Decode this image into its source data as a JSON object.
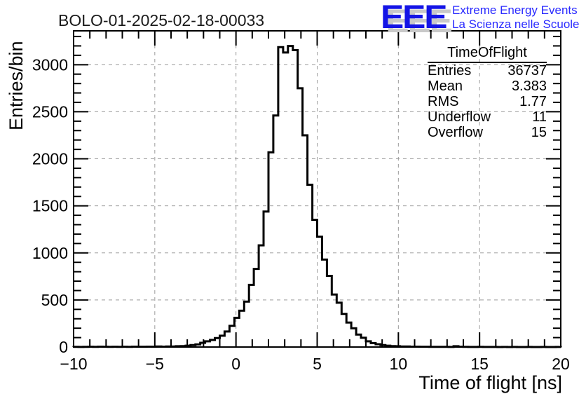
{
  "page": {
    "title": "BOLO-01-2025-02-18-00033"
  },
  "logo": {
    "acronym": "EEE",
    "line1": "Extreme Energy Events",
    "line2": "La Scienza nelle Scuole",
    "blue": "#1414e6",
    "shadow_gray": "#c9c9c9"
  },
  "stats": {
    "title": "TimeOfFlight",
    "rows": [
      {
        "label": "Entries",
        "value": "36737"
      },
      {
        "label": "Mean",
        "value": "3.383"
      },
      {
        "label": "RMS",
        "value": "1.77"
      },
      {
        "label": "Underflow",
        "value": "11"
      },
      {
        "label": "Overflow",
        "value": "15"
      }
    ]
  },
  "colors": {
    "histogram_line": "#000000",
    "grid": "#9a9a9a",
    "frame": "#000000",
    "background": "#ffffff"
  },
  "chart_data": {
    "type": "bar",
    "subtype": "step-histogram",
    "title": "BOLO-01-2025-02-18-00033",
    "xlabel": "Time of flight [ns]",
    "ylabel": "Entries/bin",
    "xlim": [
      -10,
      20
    ],
    "ylim": [
      0,
      3360
    ],
    "x_ticks_major": [
      -10,
      -5,
      0,
      5,
      10,
      15,
      20
    ],
    "x_minor_step": 1,
    "y_ticks_major": [
      0,
      500,
      1000,
      1500,
      2000,
      2500,
      3000
    ],
    "y_minor_step": 100,
    "grid": "dashed gray lines at major ticks, both axes",
    "legend": "none",
    "bin_start": -10,
    "bin_width": 0.3,
    "n_bins": 100,
    "values": [
      2,
      1,
      2,
      3,
      2,
      4,
      3,
      2,
      3,
      2,
      3,
      2,
      4,
      3,
      3,
      4,
      3,
      5,
      4,
      5,
      6,
      8,
      10,
      14,
      20,
      28,
      45,
      60,
      75,
      95,
      120,
      165,
      225,
      310,
      385,
      483,
      660,
      830,
      1080,
      1440,
      2070,
      2460,
      3187,
      3130,
      3199,
      3155,
      2750,
      2250,
      1725,
      1352,
      1173,
      930,
      756,
      558,
      471,
      352,
      260,
      199,
      132,
      99,
      60,
      42,
      30,
      20,
      14,
      10,
      8,
      6,
      5,
      4,
      4,
      3,
      3,
      2,
      2,
      2,
      2,
      1,
      8,
      3,
      2,
      1,
      1,
      2,
      1,
      1,
      1,
      0,
      1,
      0,
      1,
      0,
      0,
      1,
      0,
      0,
      1,
      0,
      0,
      1
    ],
    "peak_bin_value": 3199,
    "peak_x": 3.35
  }
}
